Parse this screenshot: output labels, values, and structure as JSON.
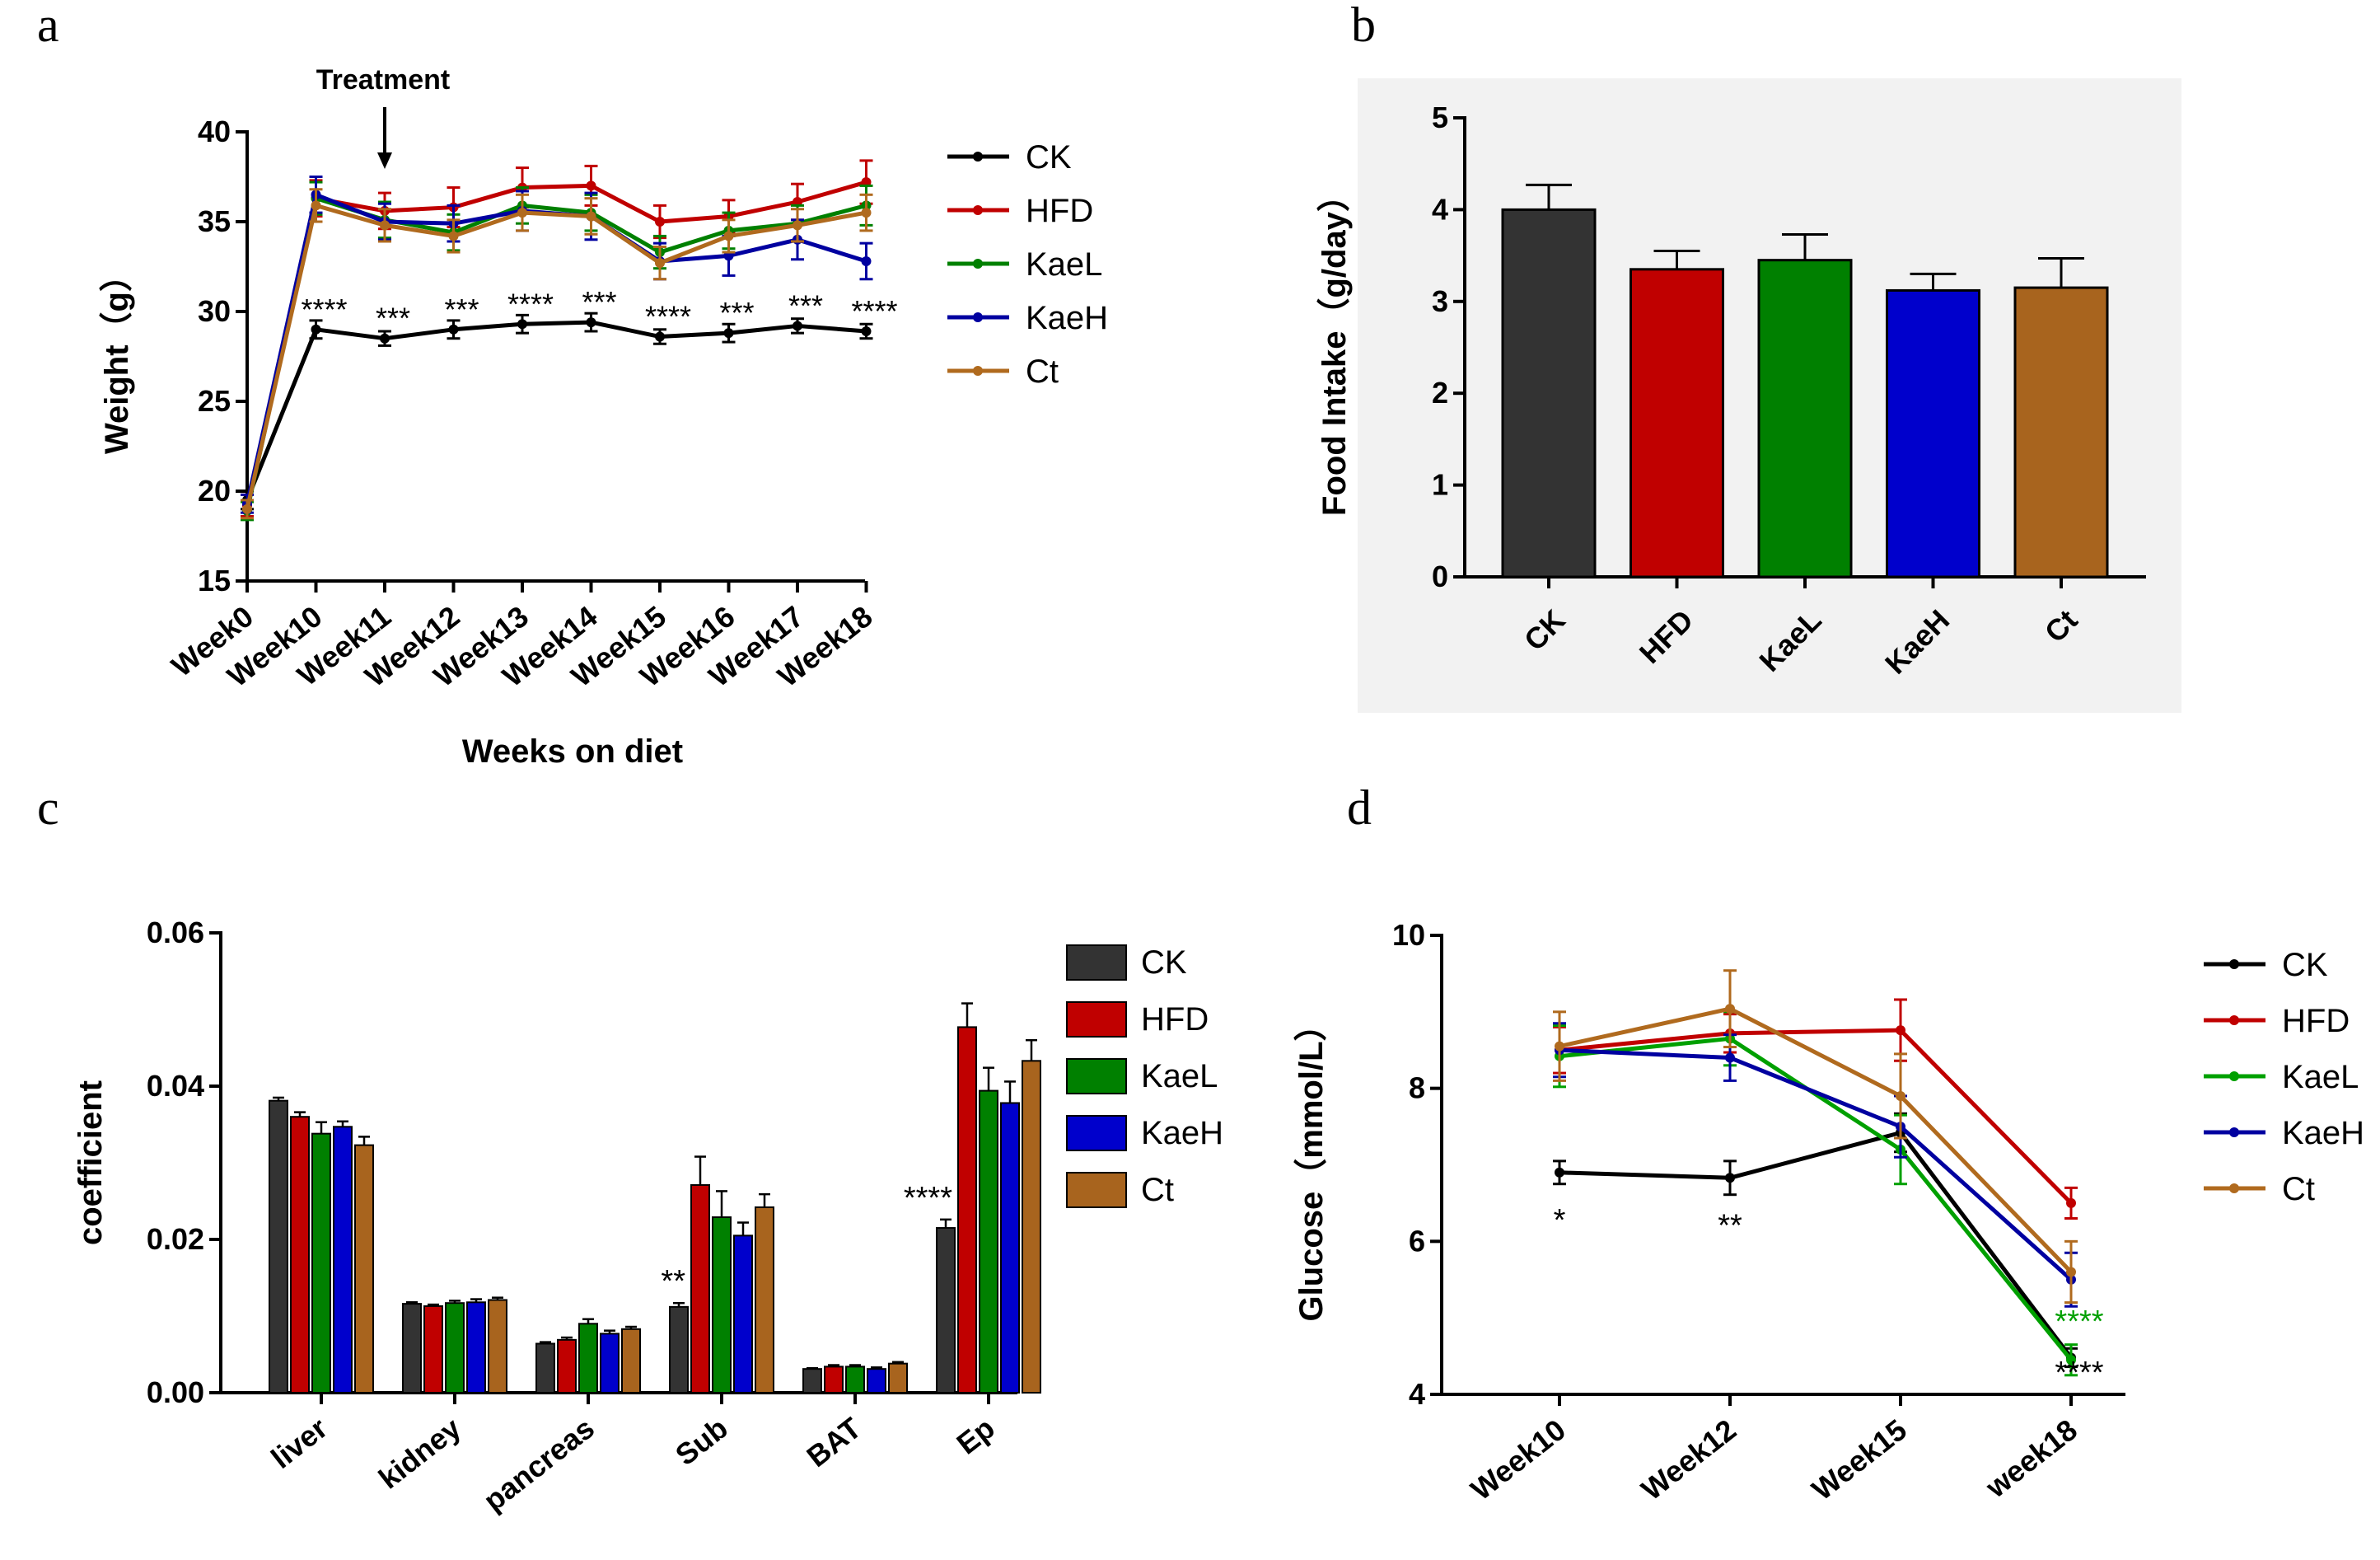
{
  "chart_data": [
    {
      "panel": "a",
      "type": "line",
      "title": "",
      "xlabel": "Weeks on diet",
      "ylabel": "Weight（g）",
      "ylim": [
        15,
        40
      ],
      "yticks": [
        15,
        20,
        25,
        30,
        35,
        40
      ],
      "categories": [
        "Week0",
        "Week10",
        "Week11",
        "Week12",
        "Week13",
        "Week14",
        "Week15",
        "Week16",
        "Week17",
        "Week18"
      ],
      "arrow_label": "Treatment",
      "arrow_at": "Week11",
      "series": [
        {
          "name": "CK",
          "color": "#000000",
          "values": [
            19.5,
            29.0,
            28.5,
            29.0,
            29.3,
            29.4,
            28.6,
            28.8,
            29.2,
            28.9
          ],
          "errors": [
            0.5,
            0.5,
            0.4,
            0.5,
            0.5,
            0.5,
            0.4,
            0.5,
            0.4,
            0.4
          ]
        },
        {
          "name": "HFD",
          "color": "#c00000",
          "values": [
            19.2,
            36.3,
            35.6,
            35.8,
            36.9,
            37.0,
            35.0,
            35.3,
            36.1,
            37.2
          ],
          "errors": [
            0.6,
            1.0,
            1.0,
            1.1,
            1.1,
            1.1,
            0.9,
            0.9,
            1.0,
            1.2
          ]
        },
        {
          "name": "KaeL",
          "color": "#008000",
          "values": [
            18.9,
            36.3,
            35.1,
            34.4,
            35.9,
            35.5,
            33.3,
            34.5,
            34.9,
            35.9
          ],
          "errors": [
            0.5,
            0.9,
            1.0,
            1.0,
            1.0,
            1.0,
            0.9,
            1.0,
            1.0,
            1.1
          ]
        },
        {
          "name": "KaeH",
          "color": "#0000a0",
          "values": [
            19.3,
            36.5,
            35.0,
            34.9,
            35.6,
            35.3,
            32.8,
            33.1,
            34.0,
            32.8
          ],
          "errors": [
            0.5,
            1.0,
            1.0,
            1.0,
            1.1,
            1.3,
            1.0,
            1.1,
            1.1,
            1.0
          ]
        },
        {
          "name": "Ct",
          "color": "#b06a1e",
          "values": [
            19.0,
            35.9,
            34.8,
            34.2,
            35.5,
            35.3,
            32.7,
            34.2,
            34.8,
            35.5
          ],
          "errors": [
            0.5,
            0.9,
            0.9,
            0.9,
            1.0,
            1.0,
            0.9,
            0.9,
            0.9,
            1.0
          ]
        }
      ],
      "annotations": [
        {
          "category": "Week10",
          "text": "****"
        },
        {
          "category": "Week11",
          "text": "***"
        },
        {
          "category": "Week12",
          "text": "***"
        },
        {
          "category": "Week13",
          "text": "****"
        },
        {
          "category": "Week14",
          "text": "***"
        },
        {
          "category": "Week15",
          "text": "****"
        },
        {
          "category": "Week16",
          "text": "***"
        },
        {
          "category": "Week17",
          "text": "***"
        },
        {
          "category": "Week18",
          "text": "****"
        }
      ]
    },
    {
      "panel": "b",
      "type": "bar",
      "title": "",
      "xlabel": "",
      "ylabel": "Food Intake（g/day）",
      "ylim": [
        0,
        5
      ],
      "yticks": [
        0,
        1,
        2,
        3,
        4,
        5
      ],
      "categories": [
        "CK",
        "HFD",
        "KaeL",
        "KaeH",
        "Ct"
      ],
      "values": [
        4.0,
        3.35,
        3.45,
        3.12,
        3.15
      ],
      "errors": [
        0.27,
        0.2,
        0.28,
        0.18,
        0.32
      ],
      "colors": [
        "#333333",
        "#c00000",
        "#008000",
        "#0000cc",
        "#a8641e"
      ]
    },
    {
      "panel": "c",
      "type": "bar",
      "title": "",
      "xlabel": "",
      "ylabel": "coefficient",
      "ylim": [
        0,
        0.06
      ],
      "yticks": [
        "0.00",
        "0.02",
        "0.04",
        "0.06"
      ],
      "categories": [
        "liver",
        "kidney",
        "pancreas",
        "Sub",
        "BAT",
        "Ep"
      ],
      "series": [
        {
          "name": "CK",
          "color": "#333333",
          "values": [
            0.0381,
            0.0116,
            0.0064,
            0.0112,
            0.0031,
            0.0215
          ],
          "errors": [
            0.0004,
            0.0002,
            0.0002,
            0.0005,
            0.0001,
            0.0011
          ]
        },
        {
          "name": "HFD",
          "color": "#c00000",
          "values": [
            0.036,
            0.0113,
            0.0069,
            0.0271,
            0.0034,
            0.0477
          ],
          "errors": [
            0.0006,
            0.0002,
            0.0003,
            0.0037,
            0.0002,
            0.0031
          ]
        },
        {
          "name": "KaeL",
          "color": "#008000",
          "values": [
            0.0338,
            0.0117,
            0.009,
            0.0229,
            0.0034,
            0.0394
          ],
          "errors": [
            0.0015,
            0.0003,
            0.0006,
            0.0034,
            0.0002,
            0.003
          ]
        },
        {
          "name": "KaeH",
          "color": "#0000cc",
          "values": [
            0.0347,
            0.0118,
            0.0077,
            0.0205,
            0.0031,
            0.0378
          ],
          "errors": [
            0.0007,
            0.0004,
            0.0004,
            0.0017,
            0.0002,
            0.0028
          ]
        },
        {
          "name": "Ct",
          "color": "#a8641e",
          "values": [
            0.0323,
            0.0121,
            0.0083,
            0.0242,
            0.0038,
            0.0433
          ],
          "errors": [
            0.0011,
            0.0003,
            0.0003,
            0.0017,
            0.0002,
            0.0027
          ]
        }
      ],
      "annotations": [
        {
          "category": "Sub",
          "text": "**"
        },
        {
          "category": "Ep",
          "text": "****"
        }
      ]
    },
    {
      "panel": "d",
      "type": "line",
      "title": "",
      "xlabel": "",
      "ylabel": "Glucose（mmol/L）",
      "ylim": [
        4,
        10
      ],
      "yticks": [
        4,
        6,
        8,
        10
      ],
      "categories": [
        "Week10",
        "Week12",
        "Week15",
        "week18"
      ],
      "series": [
        {
          "name": "CK",
          "color": "#000000",
          "values": [
            6.9,
            6.83,
            7.42,
            4.48
          ],
          "errors": [
            0.15,
            0.22,
            0.25,
            0.12
          ]
        },
        {
          "name": "HFD",
          "color": "#c00000",
          "values": [
            8.5,
            8.72,
            8.76,
            6.5
          ],
          "errors": [
            0.3,
            0.25,
            0.4,
            0.2
          ]
        },
        {
          "name": "KaeL",
          "color": "#00a000",
          "values": [
            8.42,
            8.65,
            7.2,
            4.45
          ],
          "errors": [
            0.4,
            0.35,
            0.45,
            0.2
          ]
        },
        {
          "name": "KaeH",
          "color": "#0000a0",
          "values": [
            8.5,
            8.4,
            7.5,
            5.5
          ],
          "errors": [
            0.35,
            0.3,
            0.4,
            0.35
          ]
        },
        {
          "name": "Ct",
          "color": "#b06a1e",
          "values": [
            8.55,
            9.04,
            7.9,
            5.6
          ],
          "errors": [
            0.45,
            0.5,
            0.55,
            0.4
          ]
        }
      ],
      "annotations": [
        {
          "category": "Week10",
          "text": "*",
          "color": "#000000"
        },
        {
          "category": "Week12",
          "text": "**",
          "color": "#000000"
        },
        {
          "category": "week18",
          "text": "****",
          "color": "#00a000"
        },
        {
          "category": "week18",
          "text": "****",
          "color": "#000000"
        }
      ]
    }
  ]
}
